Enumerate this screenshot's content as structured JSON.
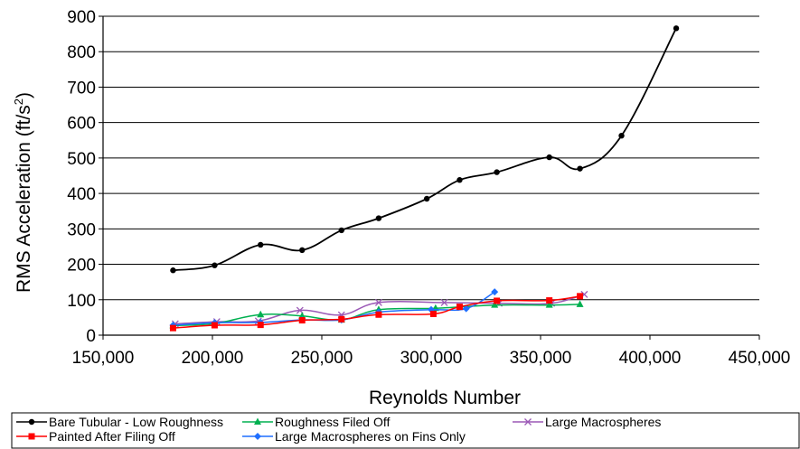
{
  "chart_data": {
    "type": "line",
    "title": "",
    "xlabel": "Reynolds Number",
    "ylabel": "RMS Acceleration (ft/s²)",
    "ylabel_parts": {
      "main": "RMS Acceleration (ft/s",
      "sup": "2",
      "close": ")"
    },
    "xlim": [
      150000,
      450000
    ],
    "ylim": [
      0,
      900
    ],
    "x_ticks": [
      150000,
      200000,
      250000,
      300000,
      350000,
      400000,
      450000
    ],
    "x_tick_labels": [
      "150,000",
      "200,000",
      "250,000",
      "300,000",
      "350,000",
      "400,000",
      "450,000"
    ],
    "y_ticks": [
      0,
      100,
      200,
      300,
      400,
      500,
      600,
      700,
      800,
      900
    ],
    "y_tick_labels": [
      "0",
      "100",
      "200",
      "300",
      "400",
      "500",
      "600",
      "700",
      "800",
      "900"
    ],
    "grid": "horizontal",
    "legend_position": "bottom",
    "series": [
      {
        "name": "Bare Tubular - Low Roughness",
        "color": "#000000",
        "marker": "circle",
        "x": [
          182000,
          201000,
          222000,
          241000,
          259000,
          276000,
          298000,
          313000,
          330000,
          354000,
          368000,
          387000,
          412000
        ],
        "y": [
          183,
          197,
          255,
          240,
          296,
          330,
          385,
          438,
          460,
          502,
          470,
          563,
          866
        ]
      },
      {
        "name": "Roughness Filed Off",
        "color": "#00b050",
        "marker": "triangle",
        "x": [
          182000,
          201000,
          222000,
          241000,
          259000,
          276000,
          302000,
          329000,
          354000,
          368000
        ],
        "y": [
          27,
          33,
          58,
          54,
          43,
          72,
          76,
          85,
          85,
          87
        ]
      },
      {
        "name": "Large Macrospheres",
        "color": "#9b59b6",
        "marker": "x",
        "x": [
          183000,
          202000,
          221000,
          240000,
          259000,
          276000,
          306000,
          331000,
          355000,
          370000
        ],
        "y": [
          32,
          38,
          40,
          70,
          57,
          92,
          92,
          90,
          90,
          115
        ]
      },
      {
        "name": "Painted After Filing Off",
        "color": "#ff0000",
        "marker": "square",
        "x": [
          182000,
          201000,
          222000,
          241000,
          259000,
          276000,
          301000,
          313000,
          330000,
          354000,
          368000
        ],
        "y": [
          20,
          28,
          29,
          42,
          45,
          58,
          60,
          80,
          97,
          98,
          110
        ]
      },
      {
        "name": "Large Macrospheres on Fins Only",
        "color": "#1f6fff",
        "marker": "diamond",
        "x": [
          182000,
          201000,
          222000,
          241000,
          259000,
          276000,
          300000,
          316000,
          329000
        ],
        "y": [
          28,
          35,
          36,
          43,
          43,
          65,
          72,
          75,
          122
        ]
      }
    ]
  }
}
